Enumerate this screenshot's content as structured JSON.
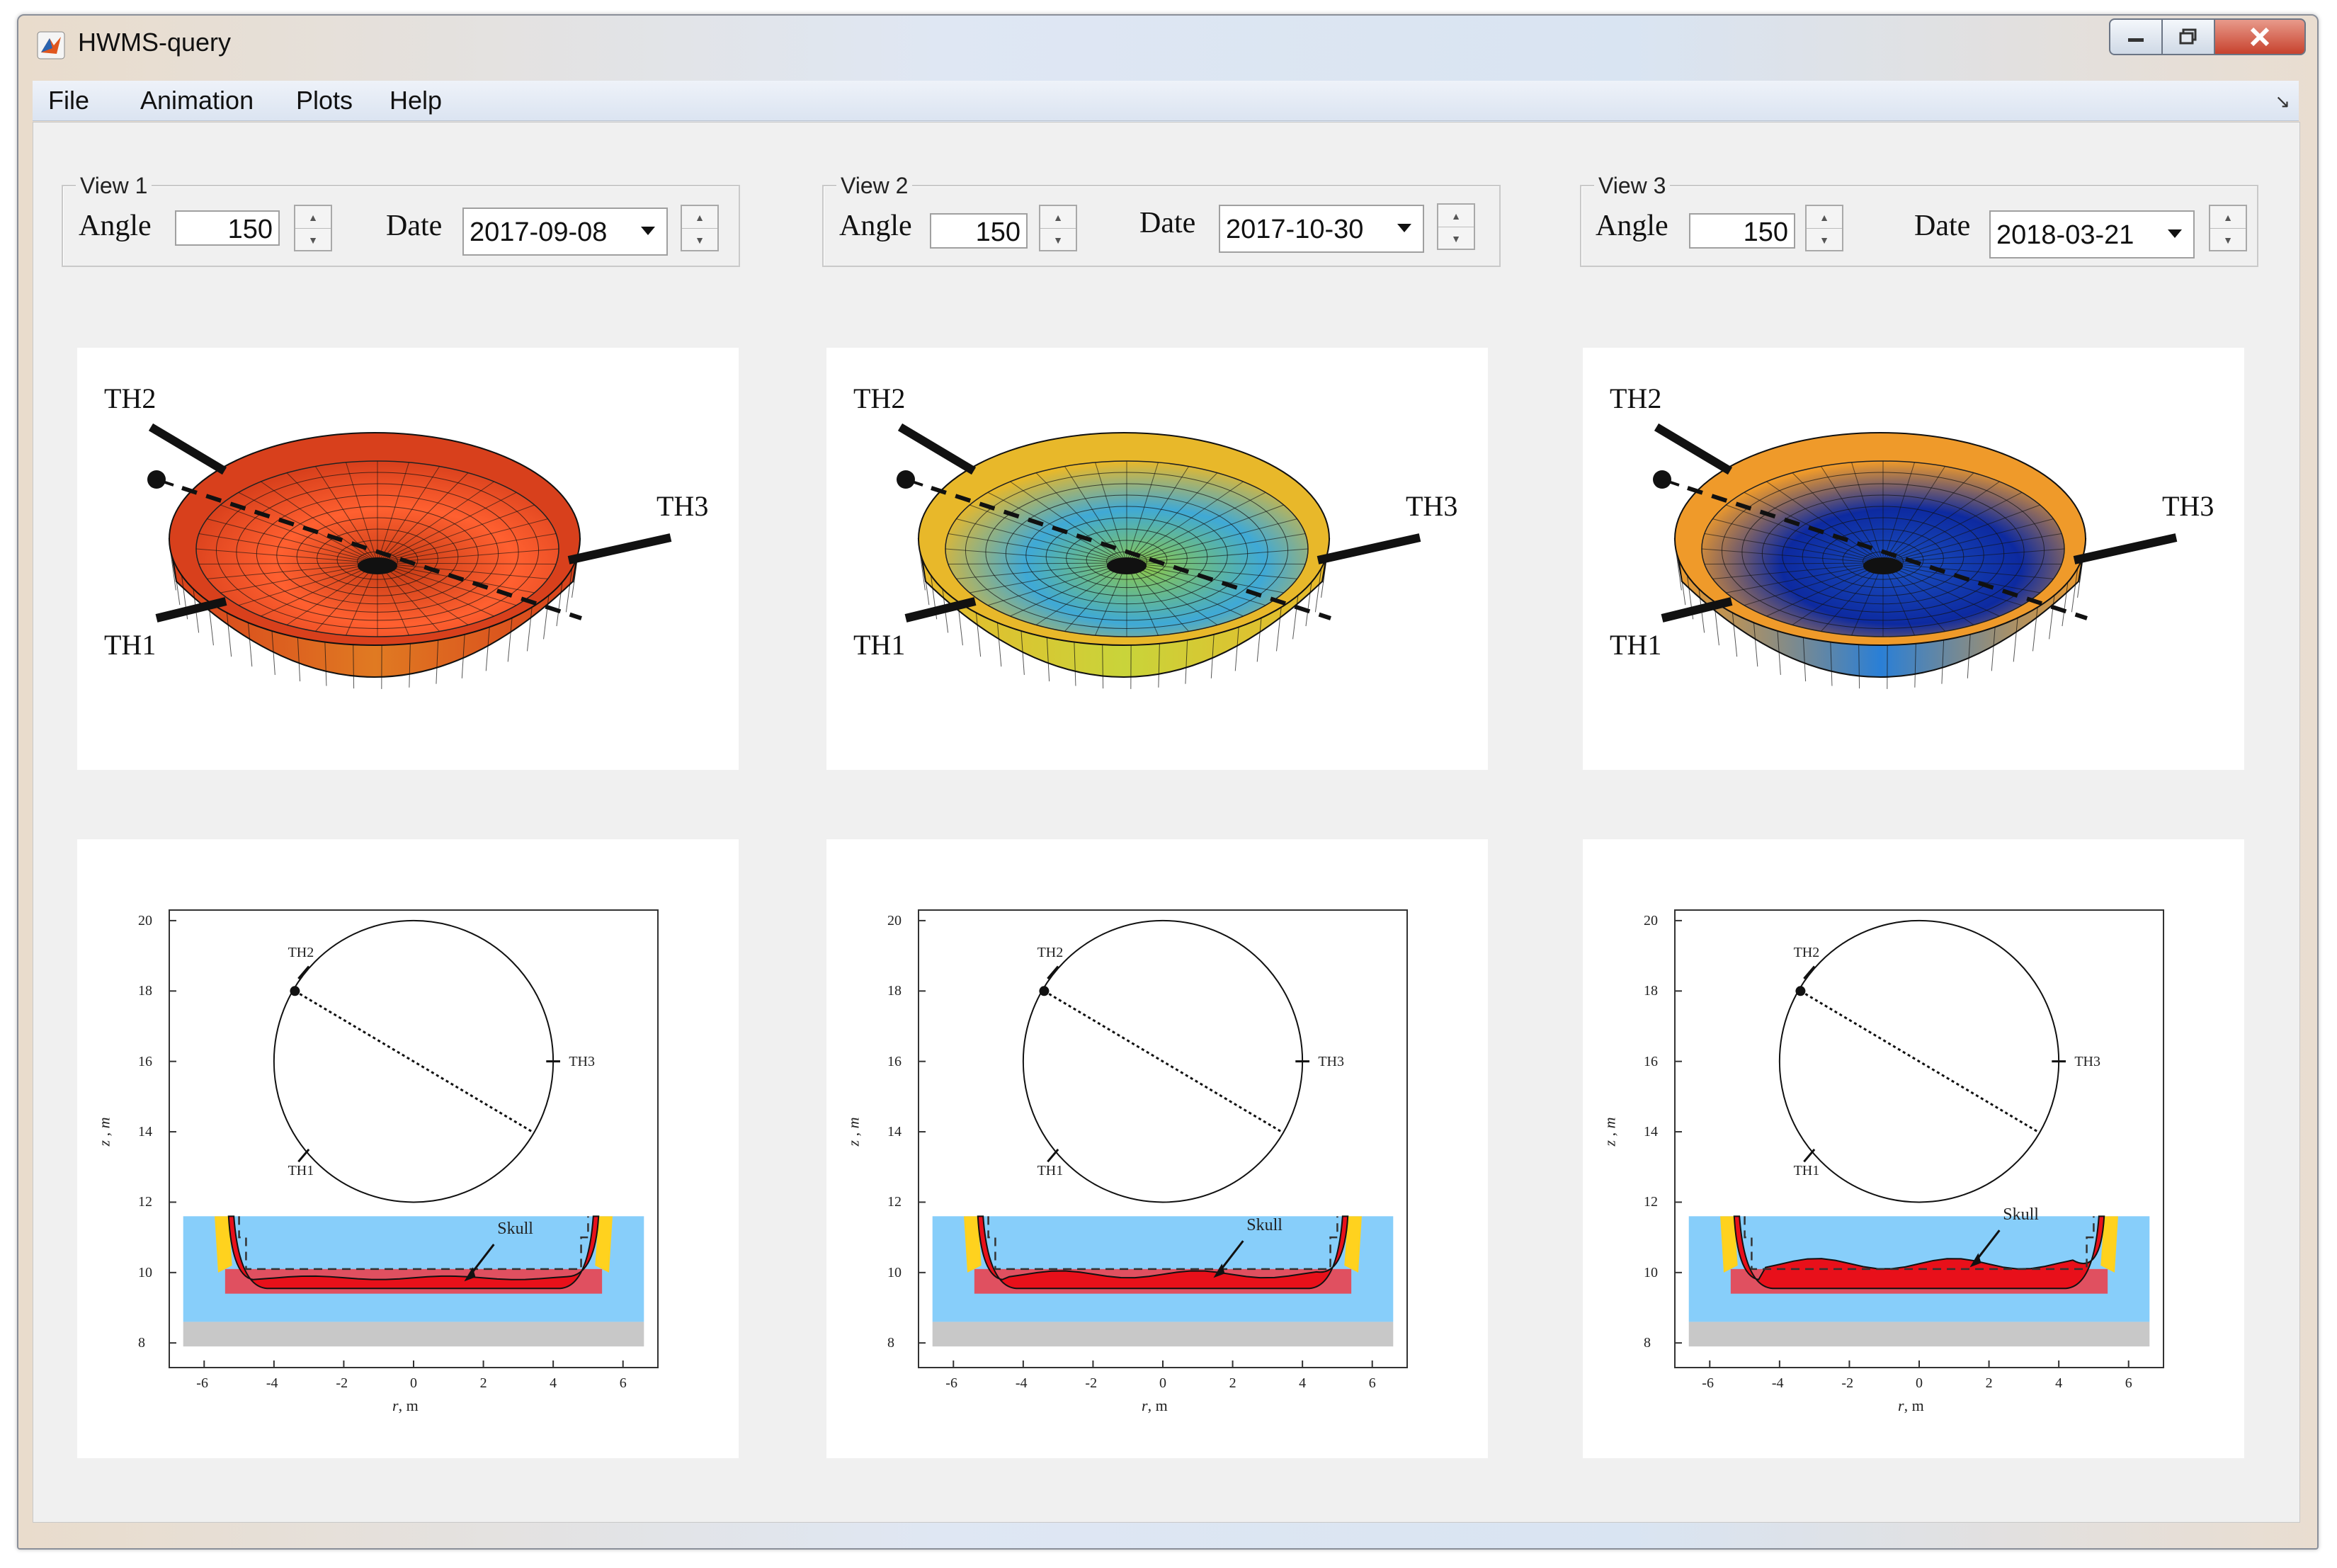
{
  "window": {
    "title": "HWMS-query"
  },
  "menu": {
    "items": [
      "File",
      "Animation",
      "Plots",
      "Help"
    ]
  },
  "views": [
    {
      "legend": "View 1",
      "angle_label": "Angle",
      "angle": "150",
      "date_label": "Date",
      "date": "2017-09-08",
      "colors": {
        "rim": "#d8401c",
        "mid": "#e07a22",
        "center": "#c43a14",
        "hot": "#ff6030"
      }
    },
    {
      "legend": "View 2",
      "angle_label": "Angle",
      "angle": "150",
      "date_label": "Date",
      "date": "2017-10-30",
      "colors": {
        "rim": "#e8b82a",
        "mid": "#c9d43a",
        "center": "#8cc84a",
        "hot": "#3fa9d6"
      }
    },
    {
      "legend": "View 3",
      "angle_label": "Angle",
      "angle": "150",
      "date_label": "Date",
      "date": "2018-03-21",
      "colors": {
        "rim": "#ef9a2a",
        "mid": "#2a7fd6",
        "center": "#1a4fc0",
        "hot": "#0d2aa0"
      }
    }
  ],
  "surface_plot": {
    "labels": {
      "th1": "TH1",
      "th2": "TH2",
      "th3": "TH3"
    }
  },
  "profile_plot": {
    "labels": {
      "th1": "TH1",
      "th2": "TH2",
      "th3": "TH3",
      "skull": "Skull"
    },
    "xlabel_italic": "r",
    "xlabel_unit": ", m",
    "ylabel": "z , m",
    "xticks": [
      -6,
      -4,
      -2,
      0,
      2,
      4,
      6
    ],
    "yticks": [
      8,
      10,
      12,
      14,
      16,
      18,
      20
    ],
    "xlim": [
      -7,
      7
    ],
    "ylim": [
      7.3,
      20.3
    ],
    "colors": {
      "water": "#87cefa",
      "ground": "#c8c8c8",
      "melt": "#e8101a",
      "crust": "#e05060",
      "yellow": "#ffd21e"
    }
  }
}
